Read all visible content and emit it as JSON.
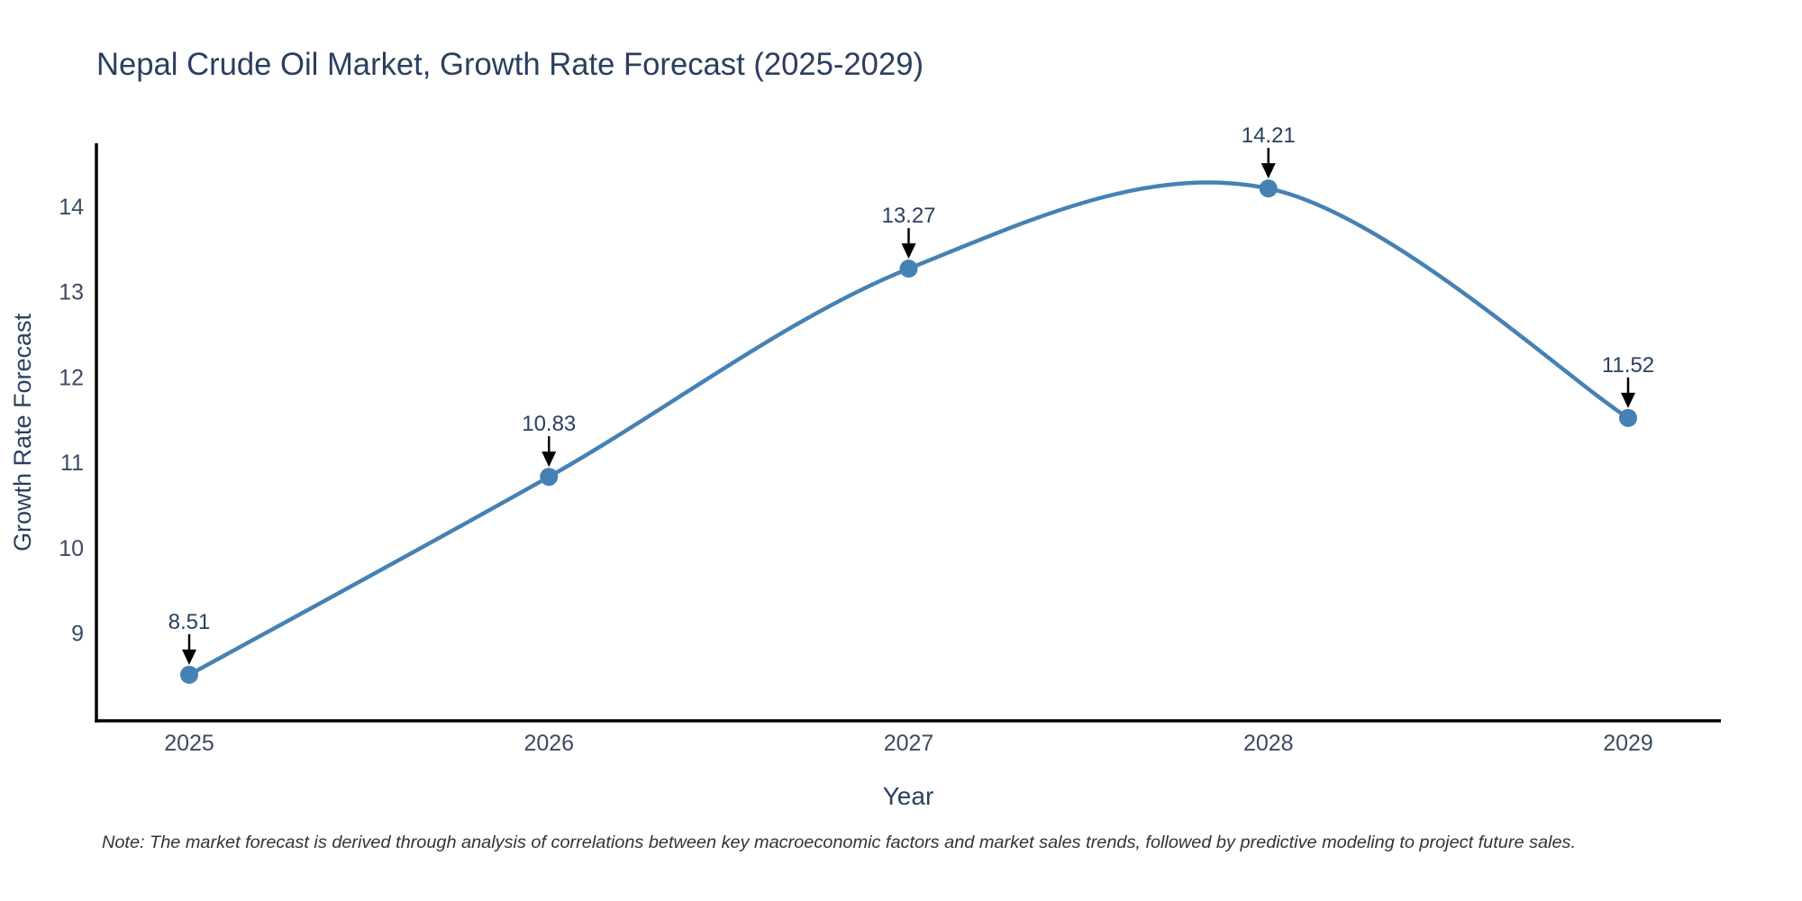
{
  "note": "Note: The market forecast is derived through analysis of correlations between key macroeconomic factors and market sales trends, followed by predictive modeling to project future sales.",
  "colors": {
    "line": "#4681b4",
    "marker": "#4681b4",
    "axis": "#000000",
    "arrow": "#000000",
    "title_text": "#2a3f5f",
    "tick_text": "#3b4a63",
    "note_text": "#333333",
    "background": "#ffffff"
  },
  "chart_data": {
    "type": "line",
    "title": "Nepal Crude Oil Market, Growth Rate Forecast (2025-2029)",
    "x": [
      "2025",
      "2026",
      "2027",
      "2028",
      "2029"
    ],
    "series": [
      {
        "name": "Growth Rate Forecast",
        "values": [
          8.51,
          10.83,
          13.27,
          14.21,
          11.52
        ]
      }
    ],
    "annotations": [
      "8.51",
      "10.83",
      "13.27",
      "14.21",
      "11.52"
    ],
    "xlabel": "Year",
    "ylabel": "Growth Rate Forecast",
    "yticks": [
      9,
      10,
      11,
      12,
      13,
      14
    ],
    "ylim": [
      7.97,
      14.74
    ],
    "line_shape": "spline",
    "markers": true,
    "grid": false,
    "legend_position": "none"
  }
}
